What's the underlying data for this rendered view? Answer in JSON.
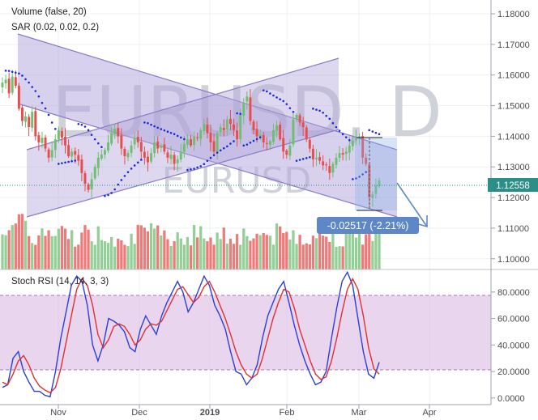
{
  "chart_data": [
    {
      "type": "candlestick",
      "symbol": "EURUSD, D",
      "watermark_sub": "EURUSD",
      "legend": [
        "Volume (false, 20)",
        "SAR (0.02, 0.02, 0.2)"
      ],
      "x_ticks": [
        "Nov",
        "Dec",
        "2019",
        "Feb",
        "Mar",
        "Apr"
      ],
      "y_ticks": [
        "1.18000",
        "1.17000",
        "1.16000",
        "1.15000",
        "1.14000",
        "1.13000",
        "1.12000",
        "1.11000",
        "1.10000"
      ],
      "ylim": [
        1.0965,
        1.1845
      ],
      "last_price": "1.12558",
      "last_price_value": 1.12558,
      "measure_label": "-0.02517 (-2.21%)",
      "colors": {
        "up": "#6fbf73",
        "down": "#e84d4d",
        "channel": "#b3a7dc",
        "sar": "#1c2bd6",
        "label_bg": "#5d87c6"
      },
      "close_series": [
        1.1575,
        1.1585,
        1.154,
        1.1595,
        1.1565,
        1.149,
        1.145,
        1.1465,
        1.143,
        1.148,
        1.14,
        1.138,
        1.1395,
        1.136,
        1.133,
        1.1355,
        1.139,
        1.142,
        1.1395,
        1.137,
        1.1335,
        1.135,
        1.134,
        1.132,
        1.128,
        1.1245,
        1.1225,
        1.126,
        1.13,
        1.133,
        1.134,
        1.1355,
        1.138,
        1.141,
        1.1425,
        1.14,
        1.136,
        1.1335,
        1.1345,
        1.137,
        1.1395,
        1.138,
        1.135,
        1.133,
        1.1315,
        1.1345,
        1.138,
        1.136,
        1.137,
        1.135,
        1.133,
        1.134,
        1.131,
        1.1325,
        1.135,
        1.1375,
        1.139,
        1.137,
        1.14,
        1.1395,
        1.142,
        1.144,
        1.141,
        1.138,
        1.135,
        1.141,
        1.143,
        1.142,
        1.1455,
        1.144,
        1.142,
        1.139,
        1.147,
        1.151,
        1.153,
        1.145,
        1.142,
        1.14,
        1.1405,
        1.138,
        1.1375,
        1.1385,
        1.142,
        1.1435,
        1.139,
        1.135,
        1.134,
        1.137,
        1.1455,
        1.147,
        1.1445,
        1.143,
        1.139,
        1.136,
        1.1325,
        1.133,
        1.132,
        1.1305,
        1.1305,
        1.128,
        1.131,
        1.133,
        1.1345,
        1.134,
        1.135,
        1.137,
        1.1385,
        1.1395,
        1.14,
        1.133,
        1.131,
        1.12,
        1.121,
        1.124,
        1.1256
      ]
    },
    {
      "type": "line",
      "title": "Stoch RSI (14, 14, 3, 3)",
      "y_ticks": [
        "80.0000",
        "60.0000",
        "40.0000",
        "20.0000",
        "0.0000"
      ],
      "ylim": [
        -5,
        97
      ],
      "band": [
        20,
        80
      ],
      "series": [
        {
          "color": "#2b3fd6",
          "values": [
            8,
            10,
            30,
            35,
            20,
            12,
            5,
            5,
            2,
            1,
            20,
            45,
            65,
            85,
            92,
            88,
            70,
            40,
            28,
            40,
            60,
            58,
            55,
            50,
            38,
            35,
            52,
            62,
            55,
            48,
            62,
            72,
            80,
            88,
            80,
            65,
            72,
            82,
            92,
            85,
            70,
            62,
            52,
            35,
            20,
            18,
            10,
            15,
            25,
            45,
            62,
            72,
            82,
            88,
            72,
            55,
            40,
            28,
            18,
            10,
            12,
            20,
            45,
            68,
            88,
            95,
            85,
            60,
            35,
            18,
            15,
            27
          ]
        },
        {
          "color": "#e03030",
          "values": [
            12,
            10,
            18,
            28,
            32,
            25,
            15,
            9,
            6,
            4,
            8,
            22,
            42,
            62,
            82,
            90,
            85,
            70,
            48,
            38,
            44,
            54,
            56,
            54,
            48,
            40,
            44,
            52,
            56,
            55,
            58,
            66,
            74,
            82,
            84,
            78,
            72,
            76,
            84,
            88,
            80,
            70,
            60,
            48,
            35,
            25,
            18,
            15,
            18,
            30,
            45,
            60,
            72,
            82,
            80,
            68,
            52,
            40,
            28,
            18,
            14,
            16,
            28,
            45,
            65,
            82,
            90,
            82,
            62,
            38,
            22,
            18
          ]
        }
      ]
    }
  ]
}
